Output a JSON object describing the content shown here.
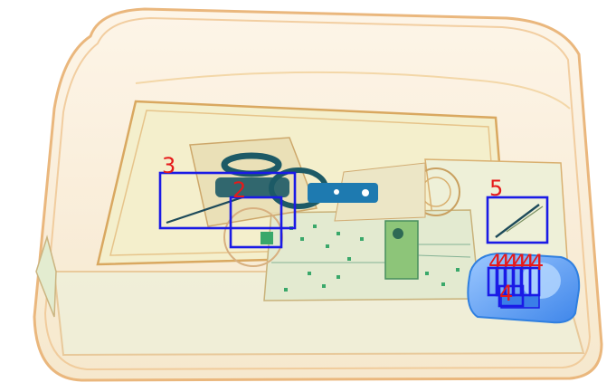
{
  "colors": {
    "box": "#1a1ae6",
    "label": "#e61a1a",
    "case_outline": "#e8b070",
    "case_fill": "#fbeed8",
    "inner_fill": "#f2ecc4",
    "board_fill": "#e2ead0",
    "dark_component": "#1d5a66",
    "blue_part": "#2f7fe0",
    "green_trace": "#3aa86a"
  },
  "detections": [
    {
      "label": "3"
    },
    {
      "label": "2"
    },
    {
      "label": "5"
    },
    {
      "label": "4"
    },
    {
      "label": "4"
    },
    {
      "label": "4"
    },
    {
      "label": "4"
    },
    {
      "label": "4"
    },
    {
      "label": "4"
    },
    {
      "label": "4"
    }
  ]
}
